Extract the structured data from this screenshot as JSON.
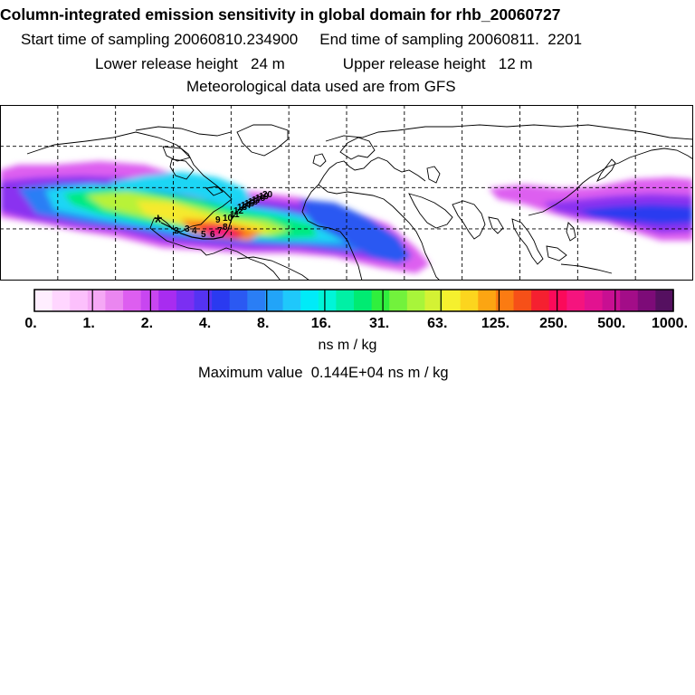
{
  "header": {
    "title": "Column-integrated emission sensitivity in global domain for rhb_20060727",
    "start_label": "Start time of sampling",
    "start_value": "20060810.234900",
    "end_label": "End time of sampling",
    "end_value": "20060811.  2201",
    "lower_label": "Lower release height",
    "lower_value": "24 m",
    "upper_label": "Upper release height",
    "upper_value": "12 m",
    "met_text": "Meteorological data used are from GFS"
  },
  "map": {
    "projection": "equirectangular",
    "lon_range": [
      -180,
      180
    ],
    "lat_range": [
      -25,
      60
    ],
    "gridlines_lon": [
      -150,
      -120,
      -90,
      -60,
      -30,
      0,
      30,
      60,
      90,
      120,
      150
    ],
    "gridlines_lat": [
      0,
      20,
      40
    ],
    "grid_style": "dashed",
    "release_marker_label": "*",
    "trajectory_labels": [
      "2",
      "3",
      "4",
      "5",
      "6",
      "7",
      "8",
      "9",
      "10",
      "11",
      "12",
      "13",
      "14",
      "15",
      "16",
      "17",
      "18",
      "19",
      "20"
    ]
  },
  "colorbar": {
    "colors": [
      "#ffeeff",
      "#ffd6ff",
      "#fcc0fc",
      "#f5a8f5",
      "#ea86f0",
      "#dd5ef0",
      "#c846f0",
      "#a82cf0",
      "#7b2ff2",
      "#5533f2",
      "#2a3af0",
      "#2b59f2",
      "#2a7ef5",
      "#22a4f8",
      "#1fc8fb",
      "#00ebf8",
      "#00f5d8",
      "#00f0a5",
      "#00eb72",
      "#30ef3d",
      "#72f23c",
      "#a8f53a",
      "#d4f234",
      "#f5f02e",
      "#fcd51e",
      "#fca512",
      "#fb7b12",
      "#f65018",
      "#f52030",
      "#fb0a5a",
      "#f5147e",
      "#e21290",
      "#c80f92",
      "#a30d88",
      "#7d0b78",
      "#551060"
    ],
    "tick_labels": [
      "0.",
      "1.",
      "2.",
      "4.",
      "8.",
      "16.",
      "31.",
      "63.",
      "125.",
      "250.",
      "500.",
      "1000."
    ],
    "units": "ns m / kg"
  },
  "stats": {
    "max_label": "Maximum value",
    "max_value": "0.144E+04",
    "max_units": "ns m / kg"
  }
}
